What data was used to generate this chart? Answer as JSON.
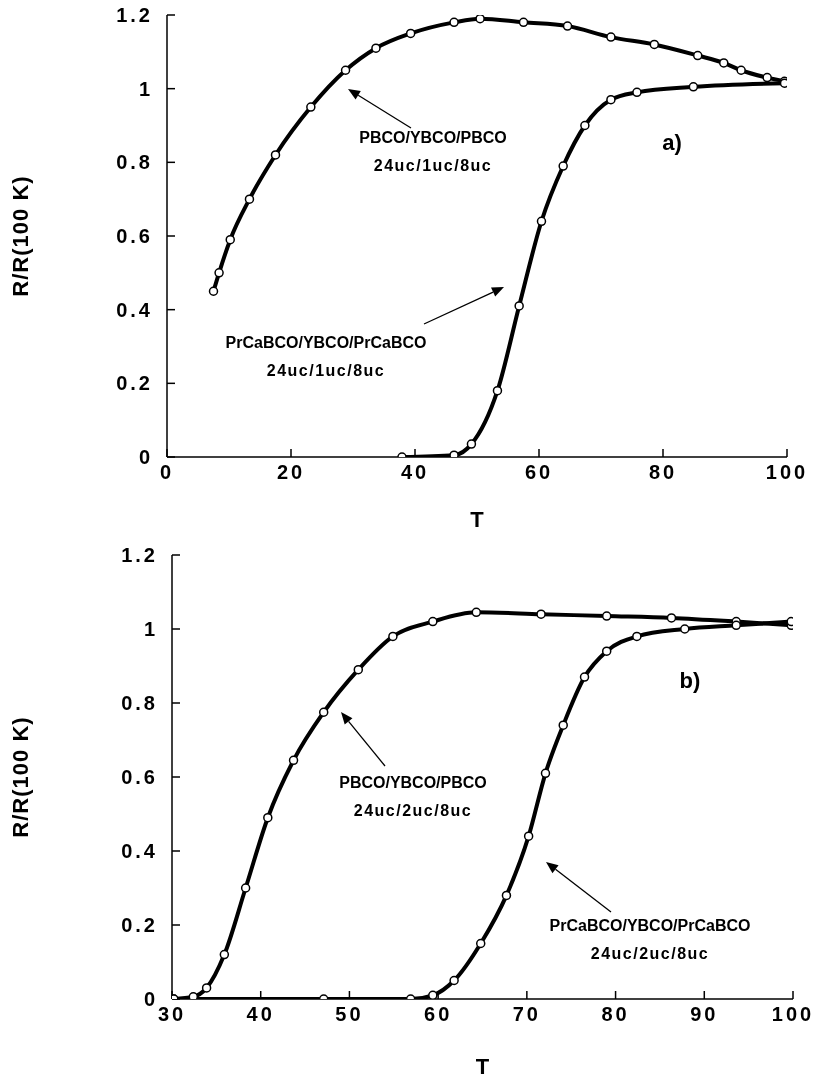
{
  "chart_data": [
    {
      "type": "line",
      "xlabel": "T",
      "ylabel": "R/R(100  K)",
      "xlim": [
        0,
        100
      ],
      "xticks": [
        0,
        20,
        40,
        60,
        80,
        100
      ],
      "ylim": [
        0,
        1.2
      ],
      "yticks": [
        0,
        0.2,
        0.4,
        0.6,
        0.8,
        1,
        1.2
      ],
      "grid": false,
      "legend": false,
      "marker": "circle",
      "line_style": "solid",
      "series": [
        {
          "color": "#000000",
          "x": [
            7.5,
            8.4,
            10.2,
            13.3,
            17.5,
            23.2,
            28.8,
            33.7,
            39.3,
            46.3,
            50.5,
            57.5,
            64.6,
            71.6,
            78.6,
            85.6,
            89.8,
            92.6,
            96.8,
            99.6
          ],
          "values": [
            0.45,
            0.5,
            0.59,
            0.7,
            0.82,
            0.95,
            1.05,
            1.11,
            1.15,
            1.18,
            1.19,
            1.18,
            1.17,
            1.14,
            1.12,
            1.09,
            1.07,
            1.05,
            1.03,
            1.02
          ]
        },
        {
          "color": "#000000",
          "x": [
            37.9,
            46.3,
            49.1,
            53.3,
            56.8,
            60.4,
            63.9,
            67.4,
            71.6,
            75.8,
            84.9,
            99.6
          ],
          "values": [
            0,
            0.005,
            0.035,
            0.18,
            0.41,
            0.64,
            0.79,
            0.9,
            0.97,
            0.99,
            1.005,
            1.015
          ]
        }
      ],
      "annotations": [
        "PBCO/YBCO/PBCO\n24uc/1uc/8uc",
        "PrCaBCO/YBCO/PrCaBCO\n24uc/1uc/8uc",
        "a)"
      ]
    },
    {
      "type": "line",
      "xlabel": "T",
      "ylabel": "R/R(100  K)",
      "xlim": [
        30,
        100
      ],
      "xticks": [
        30,
        40,
        50,
        60,
        70,
        80,
        90,
        100
      ],
      "ylim": [
        0,
        1.2
      ],
      "yticks": [
        0,
        0.2,
        0.4,
        0.6,
        0.8,
        1,
        1.2
      ],
      "grid": false,
      "legend": false,
      "marker": "circle",
      "line_style": "solid",
      "series": [
        {
          "color": "#000000",
          "x": [
            30.2,
            32.4,
            33.9,
            35.9,
            38.3,
            40.8,
            43.7,
            47.1,
            51.0,
            54.9,
            59.4,
            64.3,
            71.6,
            79.0,
            86.3,
            93.6,
            99.8
          ],
          "values": [
            0,
            0.006,
            0.03,
            0.12,
            0.3,
            0.49,
            0.645,
            0.775,
            0.89,
            0.98,
            1.02,
            1.045,
            1.04,
            1.035,
            1.03,
            1.02,
            1.01
          ]
        },
        {
          "color": "#000000",
          "x": [
            30.2,
            47.1,
            56.9,
            59.4,
            61.8,
            64.8,
            67.7,
            70.2,
            72.1,
            74.1,
            76.5,
            79.0,
            82.4,
            87.8,
            93.6,
            99.8
          ],
          "values": [
            0,
            0,
            0,
            0.01,
            0.05,
            0.15,
            0.28,
            0.44,
            0.61,
            0.74,
            0.87,
            0.94,
            0.98,
            1.0,
            1.01,
            1.02
          ]
        }
      ],
      "annotations": [
        "PBCO/YBCO/PBCO\n24uc/2uc/8uc",
        "PrCaBCO/YBCO/PrCaBCO\n24uc/2uc/8uc",
        "b)"
      ]
    }
  ]
}
